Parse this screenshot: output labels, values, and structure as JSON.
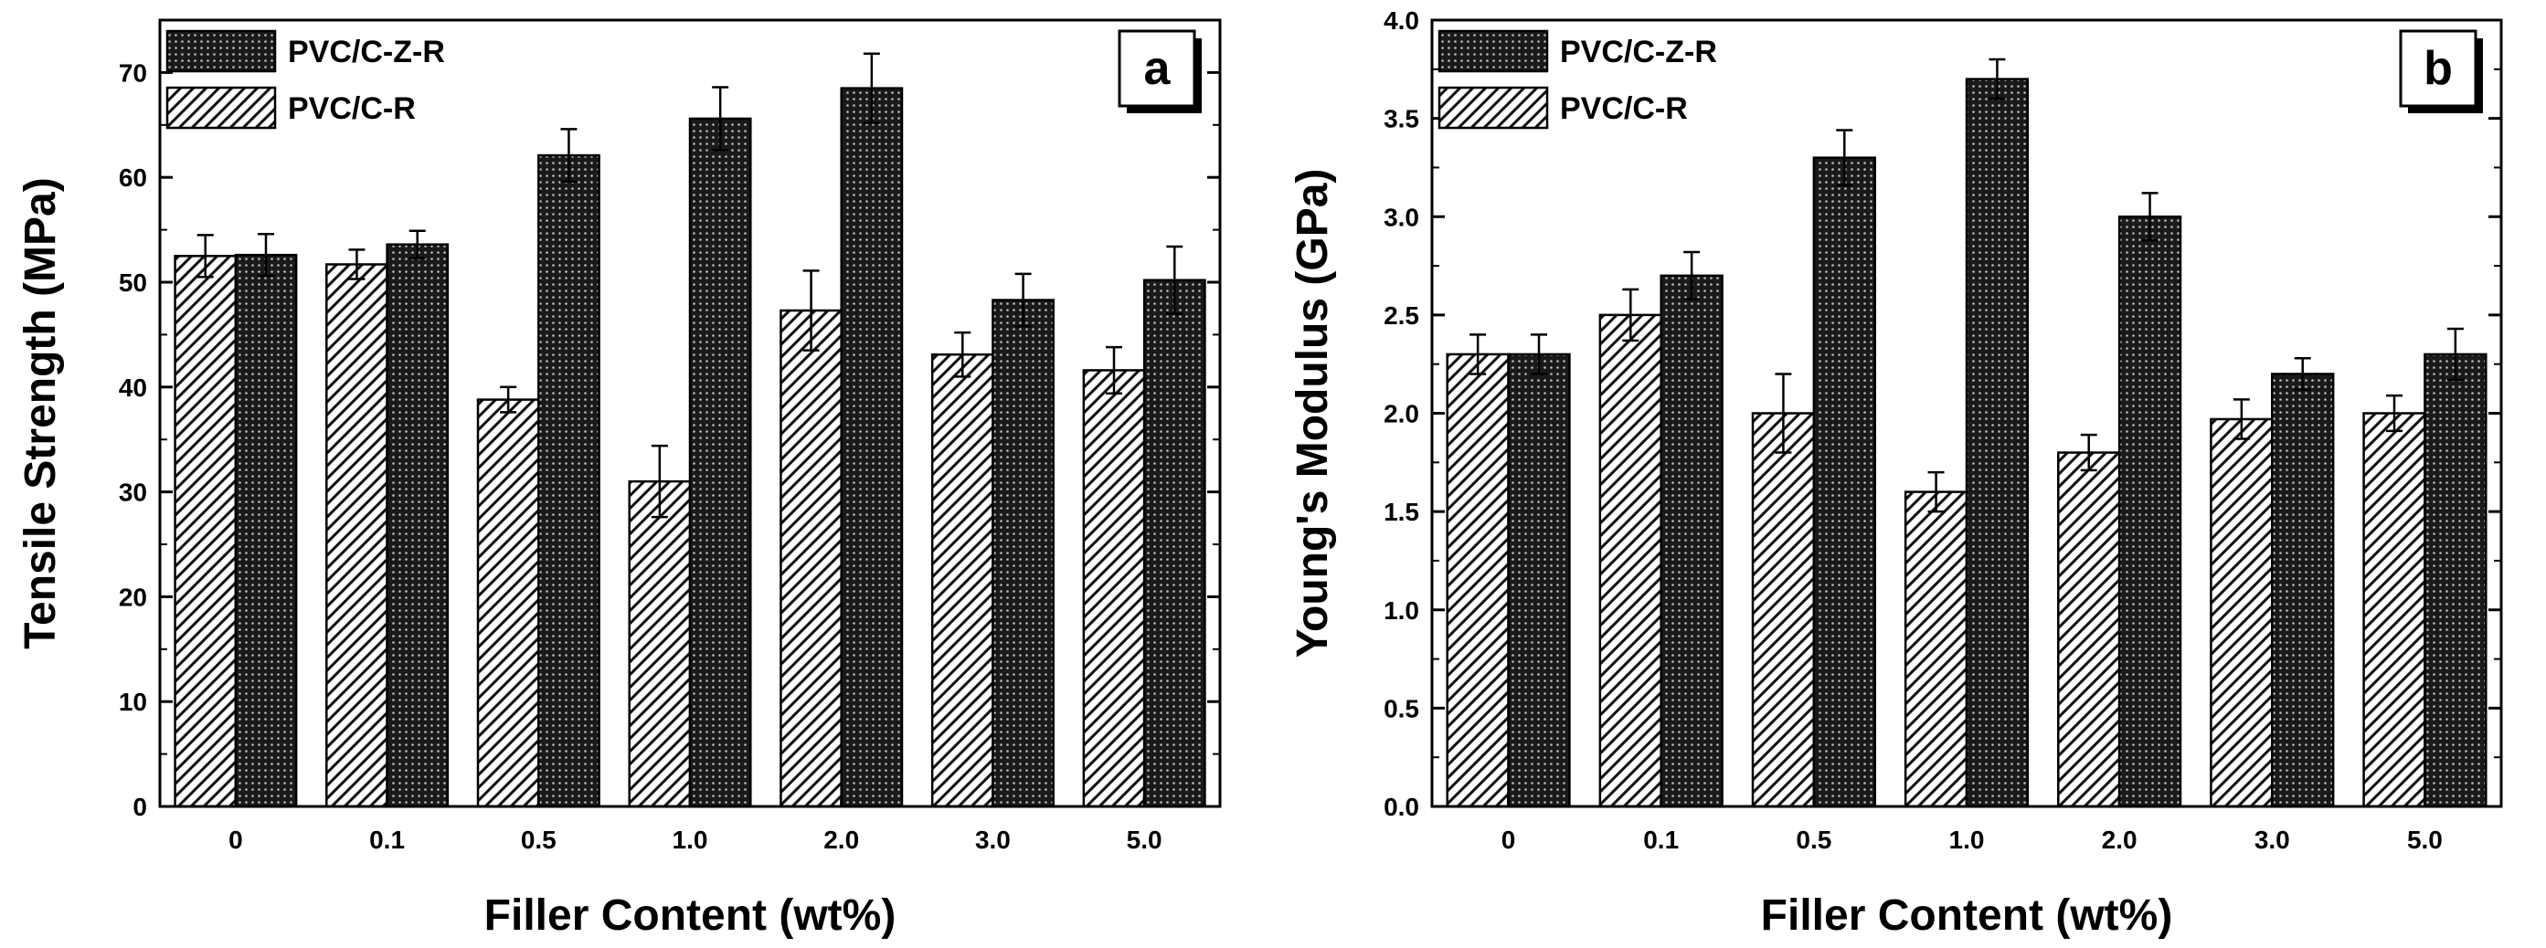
{
  "chart_data": [
    {
      "type": "bar",
      "panel_label": "a",
      "categories": [
        "0",
        "0.1",
        "0.5",
        "1.0",
        "2.0",
        "3.0",
        "5.0"
      ],
      "series": [
        {
          "name": "PVC/C-R",
          "pattern": "diagonal-hatch",
          "values": [
            52.5,
            51.7,
            38.8,
            31.0,
            47.3,
            43.1,
            41.6
          ],
          "errors": [
            2.0,
            1.4,
            1.2,
            3.4,
            3.8,
            2.1,
            2.2
          ]
        },
        {
          "name": "PVC/C-Z-R",
          "pattern": "dense-crosshatch",
          "values": [
            52.6,
            53.6,
            62.1,
            65.6,
            68.5,
            48.3,
            50.2
          ],
          "errors": [
            2.0,
            1.3,
            2.5,
            3.0,
            3.3,
            2.5,
            3.2
          ]
        }
      ],
      "xlabel": "Filler Content (wt%)",
      "ylabel": "Tensile Strength (MPa)",
      "ylim": [
        0,
        75
      ],
      "yticks": [
        "0",
        "10",
        "20",
        "30",
        "40",
        "50",
        "60",
        "70"
      ],
      "grid": false,
      "legend_position": "top-left"
    },
    {
      "type": "bar",
      "panel_label": "b",
      "categories": [
        "0",
        "0.1",
        "0.5",
        "1.0",
        "2.0",
        "3.0",
        "5.0"
      ],
      "series": [
        {
          "name": "PVC/C-R",
          "pattern": "diagonal-hatch",
          "values": [
            2.3,
            2.5,
            2.0,
            1.6,
            1.8,
            1.97,
            2.0
          ],
          "errors": [
            0.1,
            0.13,
            0.2,
            0.1,
            0.09,
            0.1,
            0.09
          ]
        },
        {
          "name": "PVC/C-Z-R",
          "pattern": "dense-crosshatch",
          "values": [
            2.3,
            2.7,
            3.3,
            3.7,
            3.0,
            2.2,
            2.3
          ],
          "errors": [
            0.1,
            0.12,
            0.14,
            0.1,
            0.12,
            0.08,
            0.13
          ]
        }
      ],
      "xlabel": "Filler Content (wt%)",
      "ylabel": "Young's Modulus (GPa)",
      "ylim": [
        0,
        4.0
      ],
      "yticks": [
        "0.0",
        "0.5",
        "1.0",
        "1.5",
        "2.0",
        "2.5",
        "3.0",
        "3.5",
        "4.0"
      ],
      "grid": false,
      "legend_position": "top-left"
    }
  ]
}
